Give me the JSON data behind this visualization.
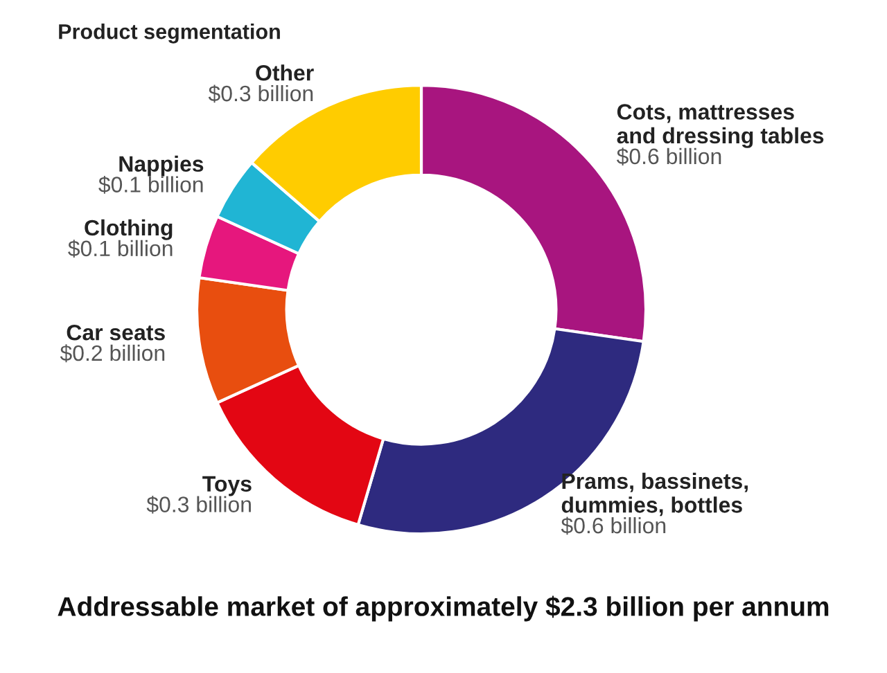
{
  "chart_data": {
    "type": "donut",
    "title": "Product segmentation",
    "categories": [
      "Cots, mattresses\nand dressing tables",
      "Prams, bassinets,\ndummies, bottles",
      "Toys",
      "Car seats",
      "Clothing",
      "Nappies",
      "Other"
    ],
    "values": [
      0.6,
      0.6,
      0.3,
      0.2,
      0.1,
      0.1,
      0.3
    ],
    "value_labels": [
      "$0.6 billion",
      "$0.6 billion",
      "$0.3 billion",
      "$0.2 billion",
      "$0.1 billion",
      "$0.1 billion",
      "$0.3 billion"
    ],
    "colors": [
      "#a8157f",
      "#2e2a7f",
      "#e30613",
      "#e84e0f",
      "#e6177d",
      "#20b5d4",
      "#ffcc00"
    ],
    "annotations": [
      "Addressable market of approximately $2.3 billion per annum"
    ]
  }
}
